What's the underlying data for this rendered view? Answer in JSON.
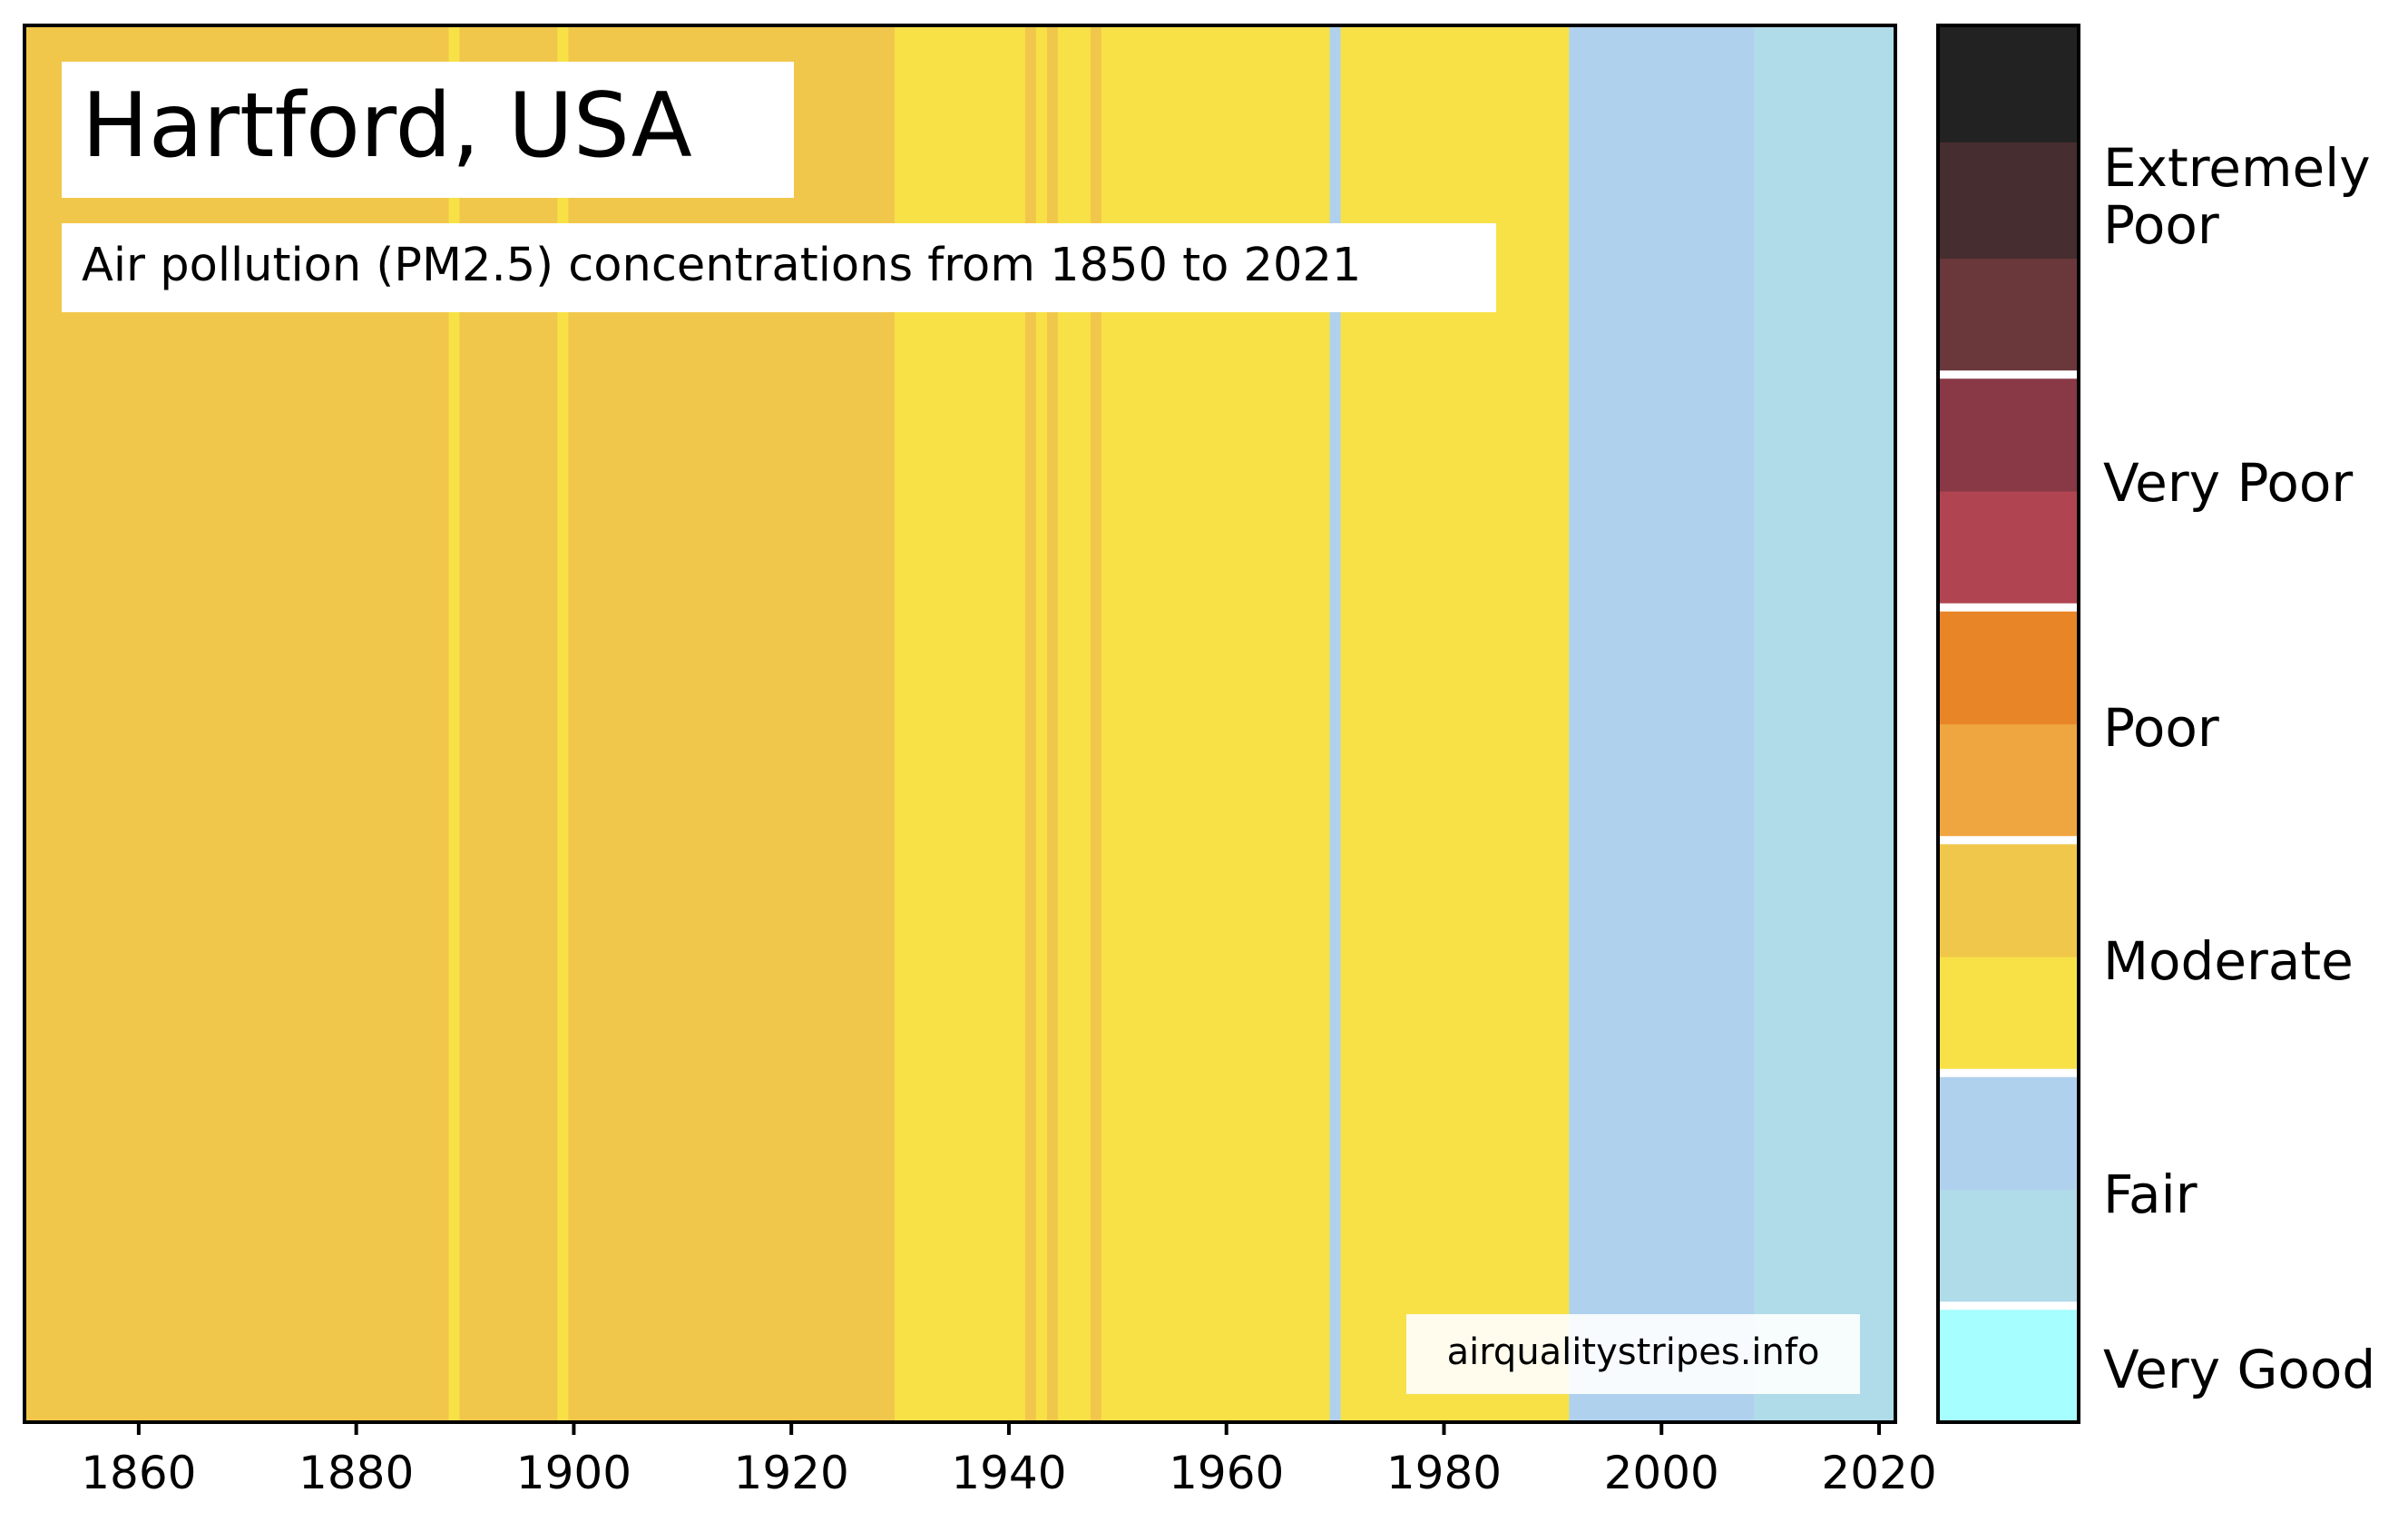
{
  "chart_data": {
    "type": "heatmap",
    "title": "Hartford, USA",
    "subtitle": "Air pollution (PM2.5) concentrations from 1850 to 2021",
    "watermark": "airqualitystripes.info",
    "xlabel": "",
    "ylabel": "",
    "xlim": [
      1849.5,
      2021.5
    ],
    "xticks": [
      1860,
      1880,
      1900,
      1920,
      1940,
      1960,
      1980,
      2000,
      2020
    ],
    "grid": false,
    "categories": [
      "Very Good",
      "Fair",
      "Fair",
      "Moderate",
      "Moderate",
      "Poor",
      "Poor",
      "Very Poor",
      "Very Poor",
      "Extremely Poor",
      "Extremely Poor",
      "Extremely Poor"
    ],
    "colors": [
      "#a6fefe",
      "#b0dbe9",
      "#b0d1ee",
      "#f8e147",
      "#f1c74b",
      "#f0a640",
      "#e88627",
      "#b04551",
      "#893846",
      "#6a373b",
      "#462d2f",
      "#222222"
    ],
    "stripes": [
      {
        "start": 1850,
        "end": 1888,
        "class": 4
      },
      {
        "start": 1889,
        "end": 1889,
        "class": 3
      },
      {
        "start": 1890,
        "end": 1898,
        "class": 4
      },
      {
        "start": 1899,
        "end": 1899,
        "class": 3
      },
      {
        "start": 1900,
        "end": 1929,
        "class": 4
      },
      {
        "start": 1930,
        "end": 1941,
        "class": 3
      },
      {
        "start": 1942,
        "end": 1942,
        "class": 4
      },
      {
        "start": 1943,
        "end": 1943,
        "class": 3
      },
      {
        "start": 1944,
        "end": 1944,
        "class": 4
      },
      {
        "start": 1945,
        "end": 1947,
        "class": 3
      },
      {
        "start": 1948,
        "end": 1948,
        "class": 4
      },
      {
        "start": 1949,
        "end": 1969,
        "class": 3
      },
      {
        "start": 1970,
        "end": 1970,
        "class": 2
      },
      {
        "start": 1971,
        "end": 1991,
        "class": 3
      },
      {
        "start": 1992,
        "end": 2008,
        "class": 2
      },
      {
        "start": 2009,
        "end": 2021,
        "class": 1
      }
    ],
    "legend": {
      "position": "right",
      "labels": [
        "Very Good",
        "Fair",
        "Moderate",
        "Poor",
        "Very Poor",
        "Extremely Poor"
      ],
      "extremely_poor_line1": "Extremely",
      "extremely_poor_line2": "Poor"
    }
  }
}
